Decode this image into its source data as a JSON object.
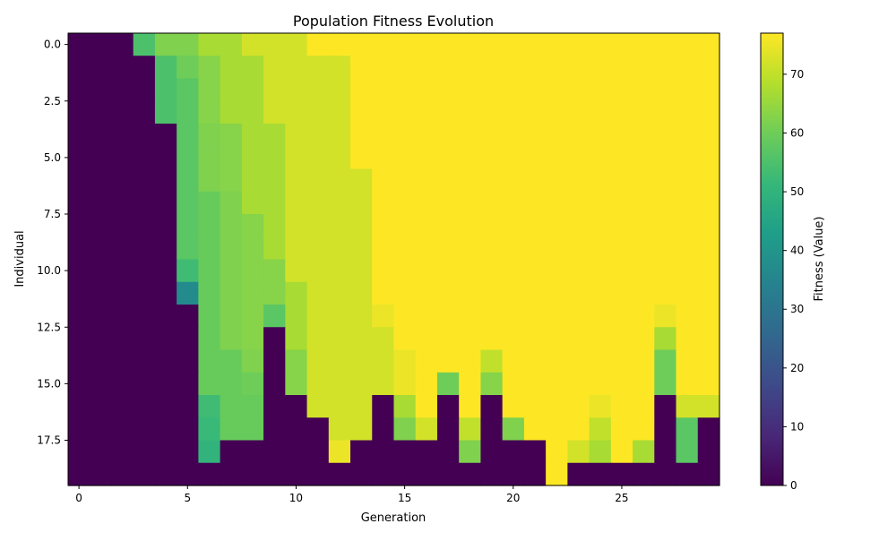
{
  "chart_data": {
    "type": "heatmap",
    "title": "Population Fitness Evolution",
    "xlabel": "Generation",
    "ylabel": "Individual",
    "colorbar_label": "Fitness (Value)",
    "colormap": "viridis",
    "vmin": 0,
    "vmax": 77,
    "n_generations": 30,
    "n_individuals": 20,
    "x_ticks": [
      0,
      5,
      10,
      15,
      20,
      25
    ],
    "y_ticks": [
      0.0,
      2.5,
      5.0,
      7.5,
      10.0,
      12.5,
      15.0,
      17.5
    ],
    "colorbar_ticks": [
      0,
      10,
      20,
      30,
      40,
      50,
      60,
      70
    ],
    "rows": [
      [
        0,
        0,
        0,
        55,
        62,
        62,
        67,
        67,
        72,
        72,
        72,
        77,
        77,
        77,
        77,
        77,
        77,
        77,
        77,
        77,
        77,
        77,
        77,
        77,
        77,
        77,
        77,
        77,
        77,
        77
      ],
      [
        0,
        0,
        0,
        0,
        55,
        60,
        63,
        67,
        67,
        72,
        72,
        72,
        72,
        77,
        77,
        77,
        77,
        77,
        77,
        77,
        77,
        77,
        77,
        77,
        77,
        77,
        77,
        77,
        77,
        77
      ],
      [
        0,
        0,
        0,
        0,
        55,
        57,
        63,
        67,
        67,
        72,
        72,
        72,
        72,
        77,
        77,
        77,
        77,
        77,
        77,
        77,
        77,
        77,
        77,
        77,
        77,
        77,
        77,
        77,
        77,
        77
      ],
      [
        0,
        0,
        0,
        0,
        55,
        57,
        63,
        67,
        67,
        72,
        72,
        72,
        72,
        77,
        77,
        77,
        77,
        77,
        77,
        77,
        77,
        77,
        77,
        77,
        77,
        77,
        77,
        77,
        77,
        77
      ],
      [
        0,
        0,
        0,
        0,
        0,
        57,
        62,
        63,
        67,
        67,
        72,
        72,
        72,
        77,
        77,
        77,
        77,
        77,
        77,
        77,
        77,
        77,
        77,
        77,
        77,
        77,
        77,
        77,
        77,
        77
      ],
      [
        0,
        0,
        0,
        0,
        0,
        57,
        62,
        63,
        67,
        67,
        72,
        72,
        72,
        77,
        77,
        77,
        77,
        77,
        77,
        77,
        77,
        77,
        77,
        77,
        77,
        77,
        77,
        77,
        77,
        77
      ],
      [
        0,
        0,
        0,
        0,
        0,
        57,
        62,
        63,
        67,
        67,
        72,
        72,
        72,
        72,
        77,
        77,
        77,
        77,
        77,
        77,
        77,
        77,
        77,
        77,
        77,
        77,
        77,
        77,
        77,
        77
      ],
      [
        0,
        0,
        0,
        0,
        0,
        57,
        59,
        62,
        67,
        67,
        72,
        72,
        72,
        72,
        77,
        77,
        77,
        77,
        77,
        77,
        77,
        77,
        77,
        77,
        77,
        77,
        77,
        77,
        77,
        77
      ],
      [
        0,
        0,
        0,
        0,
        0,
        57,
        59,
        62,
        63,
        67,
        72,
        72,
        72,
        72,
        77,
        77,
        77,
        77,
        77,
        77,
        77,
        77,
        77,
        77,
        77,
        77,
        77,
        77,
        77,
        77
      ],
      [
        0,
        0,
        0,
        0,
        0,
        57,
        59,
        62,
        63,
        67,
        72,
        72,
        72,
        72,
        77,
        77,
        77,
        77,
        77,
        77,
        77,
        77,
        77,
        77,
        77,
        77,
        77,
        77,
        77,
        77
      ],
      [
        0,
        0,
        0,
        0,
        0,
        53,
        59,
        62,
        63,
        63,
        72,
        72,
        72,
        72,
        77,
        77,
        77,
        77,
        77,
        77,
        77,
        77,
        77,
        77,
        77,
        77,
        77,
        77,
        77,
        77
      ],
      [
        0,
        0,
        0,
        0,
        0,
        37,
        59,
        62,
        63,
        63,
        67,
        72,
        72,
        72,
        77,
        77,
        77,
        77,
        77,
        77,
        77,
        77,
        77,
        77,
        77,
        77,
        77,
        77,
        77,
        77
      ],
      [
        0,
        0,
        0,
        0,
        0,
        0,
        59,
        62,
        63,
        57,
        67,
        72,
        72,
        72,
        75,
        77,
        77,
        77,
        77,
        77,
        77,
        77,
        77,
        77,
        77,
        77,
        77,
        75,
        77,
        77
      ],
      [
        0,
        0,
        0,
        0,
        0,
        0,
        59,
        62,
        63,
        0,
        67,
        72,
        72,
        72,
        72,
        77,
        77,
        77,
        77,
        77,
        77,
        77,
        77,
        77,
        77,
        77,
        77,
        67,
        77,
        77
      ],
      [
        0,
        0,
        0,
        0,
        0,
        0,
        59,
        59,
        62,
        0,
        63,
        72,
        72,
        72,
        72,
        75,
        77,
        77,
        77,
        70,
        77,
        77,
        77,
        77,
        77,
        77,
        77,
        60,
        77,
        77
      ],
      [
        0,
        0,
        0,
        0,
        0,
        0,
        59,
        59,
        60,
        0,
        63,
        72,
        72,
        72,
        72,
        75,
        77,
        60,
        77,
        63,
        77,
        77,
        77,
        77,
        77,
        77,
        77,
        60,
        77,
        77
      ],
      [
        0,
        0,
        0,
        0,
        0,
        0,
        53,
        59,
        59,
        0,
        0,
        72,
        72,
        72,
        0,
        67,
        77,
        0,
        77,
        0,
        77,
        77,
        77,
        77,
        75,
        77,
        77,
        0,
        72,
        72
      ],
      [
        0,
        0,
        0,
        0,
        0,
        0,
        52,
        59,
        59,
        0,
        0,
        0,
        72,
        72,
        0,
        62,
        72,
        0,
        70,
        0,
        62,
        77,
        77,
        77,
        70,
        77,
        77,
        0,
        57,
        0
      ],
      [
        0,
        0,
        0,
        0,
        0,
        0,
        50,
        0,
        0,
        0,
        0,
        0,
        75,
        0,
        0,
        0,
        0,
        0,
        62,
        0,
        0,
        0,
        77,
        72,
        67,
        77,
        67,
        0,
        57,
        0
      ],
      [
        0,
        0,
        0,
        0,
        0,
        0,
        0,
        0,
        0,
        0,
        0,
        0,
        0,
        0,
        0,
        0,
        0,
        0,
        0,
        0,
        0,
        0,
        77,
        0,
        0,
        0,
        0,
        0,
        0,
        0
      ]
    ]
  }
}
